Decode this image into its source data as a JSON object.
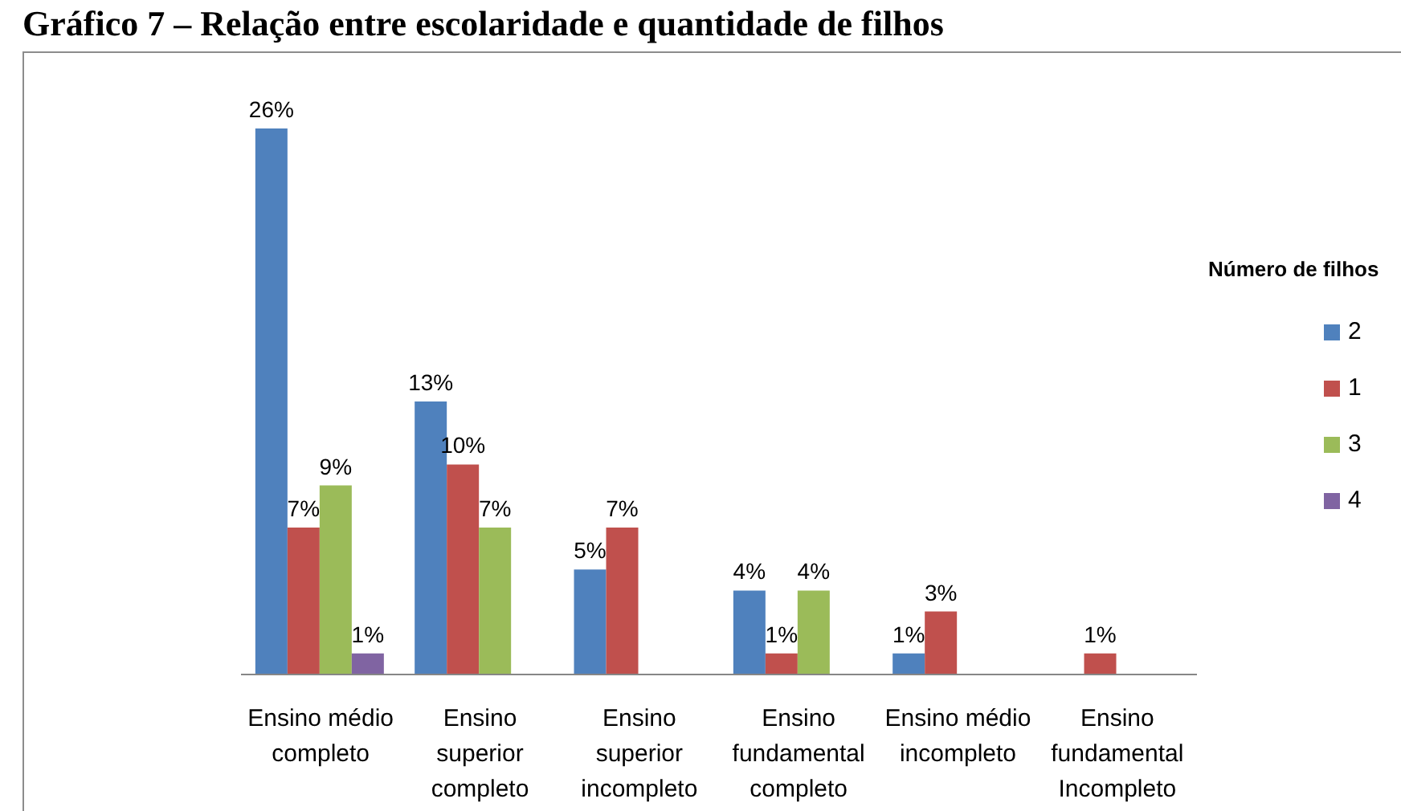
{
  "chart_data": {
    "type": "bar",
    "title": "Gráfico 7 – Relação entre escolaridade e quantidade de filhos",
    "categories": [
      "Ensino médio completo",
      "Ensino superior completo",
      "Ensino superior incompleto",
      "Ensino fundamental completo",
      "Ensino médio incompleto",
      "Ensino fundamental Incompleto"
    ],
    "legend_title": "Número de filhos",
    "legend": "right",
    "tick_labels": "x",
    "series": [
      {
        "name": "2",
        "color": "#4f81bd",
        "values": [
          26,
          13,
          5,
          4,
          1,
          null
        ],
        "value_labels": [
          "26%",
          "13%",
          "5%",
          "4%",
          "1%",
          null
        ]
      },
      {
        "name": "1",
        "color": "#c0504d",
        "values": [
          7,
          10,
          7,
          1,
          3,
          1
        ],
        "value_labels": [
          "7%",
          "10%",
          "7%",
          "1%",
          "3%",
          "1%"
        ]
      },
      {
        "name": "3",
        "color": "#9bbb59",
        "values": [
          9,
          7,
          null,
          4,
          null,
          null
        ],
        "value_labels": [
          "9%",
          "7%",
          null,
          "4%",
          null,
          null
        ]
      },
      {
        "name": "4",
        "color": "#8064a2",
        "values": [
          1,
          null,
          null,
          null,
          null,
          null
        ],
        "value_labels": [
          "1%",
          null,
          null,
          null,
          null,
          null
        ]
      }
    ]
  }
}
